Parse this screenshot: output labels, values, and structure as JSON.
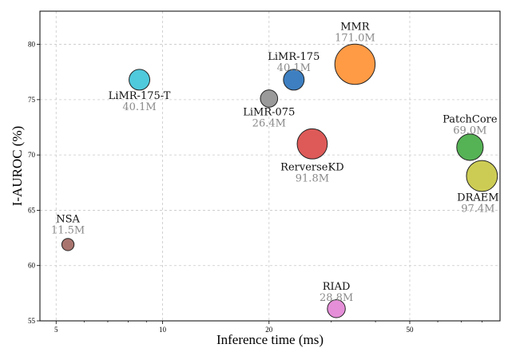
{
  "chart_data": {
    "type": "scatter",
    "xlabel": "Inference time (ms)",
    "ylabel": "I-AUROC (%)",
    "x_scale": "log",
    "xlim": [
      4.5,
      90
    ],
    "ylim": [
      55,
      83
    ],
    "x_ticks": [
      5,
      10,
      20,
      50
    ],
    "y_ticks": [
      55,
      60,
      65,
      70,
      75,
      80
    ],
    "grid": true,
    "points": [
      {
        "name": "NSA",
        "size_label": "11.5M",
        "x": 5.4,
        "y": 61.9,
        "params_m": 11.5,
        "color": "#a9746e"
      },
      {
        "name": "LiMR-175-T",
        "size_label": "40.1M",
        "x": 8.6,
        "y": 76.8,
        "params_m": 40.1,
        "color": "#4fc9dc"
      },
      {
        "name": "LiMR-075",
        "size_label": "26.4M",
        "x": 20.0,
        "y": 75.1,
        "params_m": 26.4,
        "color": "#9a9a9a"
      },
      {
        "name": "LiMR-175",
        "size_label": "40.1M",
        "x": 23.5,
        "y": 76.8,
        "params_m": 40.1,
        "color": "#3d7fc1"
      },
      {
        "name": "MMR",
        "size_label": "171.0M",
        "x": 35.0,
        "y": 78.2,
        "params_m": 171.0,
        "color": "#ff9a45"
      },
      {
        "name": "RerverseKD",
        "size_label": "91.8M",
        "x": 26.5,
        "y": 71.0,
        "params_m": 91.8,
        "color": "#dd5a58"
      },
      {
        "name": "RIAD",
        "size_label": "28.8M",
        "x": 31.0,
        "y": 56.1,
        "params_m": 28.8,
        "color": "#e58fd8"
      },
      {
        "name": "PatchCore",
        "size_label": "69.0M",
        "x": 74.0,
        "y": 70.7,
        "params_m": 69.0,
        "color": "#55b255"
      },
      {
        "name": "DRAEM",
        "size_label": "97.4M",
        "x": 80.0,
        "y": 68.1,
        "params_m": 97.4,
        "color": "#cccc55"
      }
    ]
  }
}
